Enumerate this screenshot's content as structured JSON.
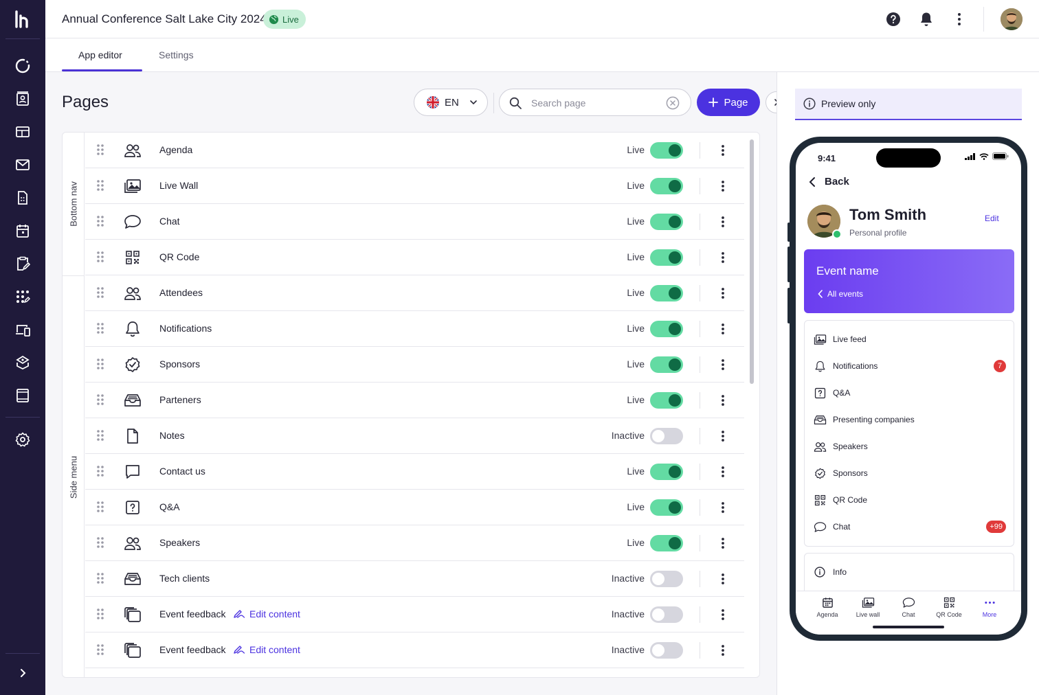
{
  "header": {
    "title": "Annual Conference Salt Lake City 2024",
    "status_badge": "Live"
  },
  "tabs": [
    {
      "label": "App editor",
      "active": true
    },
    {
      "label": "Settings",
      "active": false
    }
  ],
  "main": {
    "title": "Pages",
    "language": "EN",
    "search_placeholder": "Search page",
    "search_value": "",
    "add_button": "Page",
    "groups": [
      {
        "label": "Bottom nav"
      },
      {
        "label": "Side menu"
      }
    ],
    "rows": [
      {
        "icon": "people-icon",
        "name": "Agenda",
        "status": "Live",
        "enabled": true,
        "edit": ""
      },
      {
        "icon": "image-icon",
        "name": "Live Wall",
        "status": "Live",
        "enabled": true,
        "edit": ""
      },
      {
        "icon": "chat-icon",
        "name": "Chat",
        "status": "Live",
        "enabled": true,
        "edit": ""
      },
      {
        "icon": "qr-icon",
        "name": "QR Code",
        "status": "Live",
        "enabled": true,
        "edit": ""
      },
      {
        "icon": "people-icon",
        "name": "Attendees",
        "status": "Live",
        "enabled": true,
        "edit": ""
      },
      {
        "icon": "bell-icon",
        "name": "Notifications",
        "status": "Live",
        "enabled": true,
        "edit": ""
      },
      {
        "icon": "badge-check-icon",
        "name": "Sponsors",
        "status": "Live",
        "enabled": true,
        "edit": ""
      },
      {
        "icon": "inbox-icon",
        "name": "Parteners",
        "status": "Live",
        "enabled": true,
        "edit": ""
      },
      {
        "icon": "file-icon",
        "name": "Notes",
        "status": "Inactive",
        "enabled": false,
        "edit": ""
      },
      {
        "icon": "message-icon",
        "name": "Contact us",
        "status": "Live",
        "enabled": true,
        "edit": ""
      },
      {
        "icon": "question-icon",
        "name": "Q&A",
        "status": "Live",
        "enabled": true,
        "edit": ""
      },
      {
        "icon": "people-icon",
        "name": "Speakers",
        "status": "Live",
        "enabled": true,
        "edit": ""
      },
      {
        "icon": "inbox-icon",
        "name": "Tech clients",
        "status": "Inactive",
        "enabled": false,
        "edit": ""
      },
      {
        "icon": "cards-icon",
        "name": "Event feedback",
        "status": "Inactive",
        "enabled": false,
        "edit": "Edit content"
      },
      {
        "icon": "cards-icon",
        "name": "Event feedback",
        "status": "Inactive",
        "enabled": false,
        "edit": "Edit content"
      }
    ]
  },
  "preview": {
    "banner": "Preview only",
    "time": "9:41",
    "back": "Back",
    "profile": {
      "name": "Tom Smith",
      "subtitle": "Personal profile",
      "edit": "Edit"
    },
    "event": {
      "name": "Event name",
      "all_events": "All events"
    },
    "menu": [
      {
        "icon": "image-icon",
        "label": "Live feed",
        "badge": ""
      },
      {
        "icon": "bell-icon",
        "label": "Notifications",
        "badge": "7"
      },
      {
        "icon": "question-icon",
        "label": "Q&A",
        "badge": ""
      },
      {
        "icon": "inbox-icon",
        "label": "Presenting companies",
        "badge": ""
      },
      {
        "icon": "people-icon",
        "label": "Speakers",
        "badge": ""
      },
      {
        "icon": "badge-check-icon",
        "label": "Sponsors",
        "badge": ""
      },
      {
        "icon": "qr-icon",
        "label": "QR Code",
        "badge": ""
      },
      {
        "icon": "chat-icon",
        "label": "Chat",
        "badge": "+99"
      }
    ],
    "info": "Info",
    "tabbar": [
      {
        "icon": "calendar-icon",
        "label": "Agenda",
        "active": false
      },
      {
        "icon": "image-icon",
        "label": "Live wall",
        "active": false
      },
      {
        "icon": "chat-icon",
        "label": "Chat",
        "active": false
      },
      {
        "icon": "qr-icon",
        "label": "QR Code",
        "active": false
      },
      {
        "icon": "more-icon",
        "label": "More",
        "active": true
      }
    ]
  },
  "colors": {
    "rail": "#1f1a3a",
    "accent": "#4b32e0",
    "toggle_on": "#63dba3",
    "toggle_knob_on": "#0f6b45",
    "badge_red": "#e03a3a"
  }
}
